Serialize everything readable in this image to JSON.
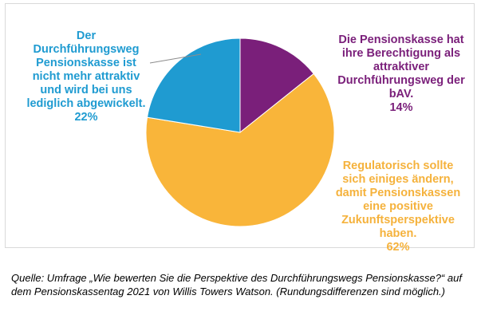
{
  "chart_data": {
    "type": "pie",
    "slices": [
      {
        "label": "Die Pensionskasse hat\nihre Berechtigung als\nattraktiver\nDurchführungsweg der\nbAV.",
        "value": 14,
        "value_label": "14%",
        "color": "#7a1f7a"
      },
      {
        "label": "Regulatorisch sollte\nsich einiges ändern,\ndamit Pensionskassen\neine positive\nZukunftsperspektive\nhaben.",
        "value": 62,
        "value_label": "62%",
        "color": "#f9b53a"
      },
      {
        "label": "Der\nDurchführungsweg\nPensionskasse ist\nnicht mehr attraktiv\nund wird bei uns\nlediglich abgewickelt.",
        "value": 22,
        "value_label": "22%",
        "color": "#1f9bd1"
      }
    ],
    "start_angle": "12 o'clock",
    "direction": "clockwise"
  },
  "caption": "Quelle: Umfrage „Wie bewerten Sie die Perspektive des Durchführungswegs Pensionskasse?“ auf dem Pensionskassentag 2021 von Willis Towers Watson. (Rundungsdifferenzen sind möglich.)"
}
